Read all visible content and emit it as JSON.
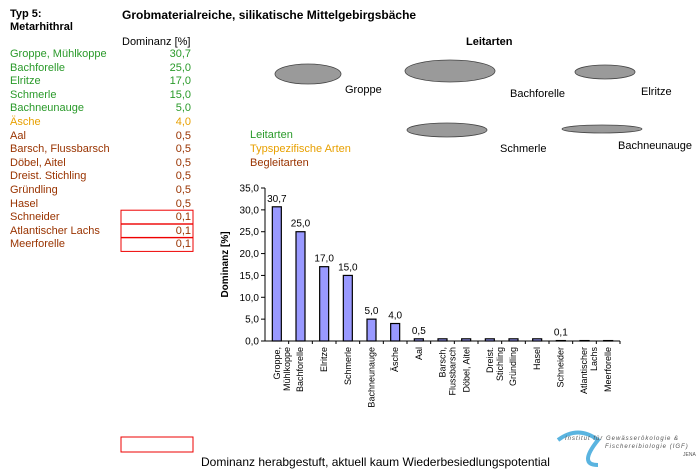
{
  "header": {
    "type_label": "Typ 5:",
    "type_name": "Metarhithral",
    "title": "Grobmaterialreiche, silikatische Mittelgebirgsbäche"
  },
  "table": {
    "header": "Dominanz [%]",
    "rows": [
      {
        "name": "Groppe, Mühlkoppe",
        "value": "30,7",
        "color": "#2a9a2a",
        "boxed": false
      },
      {
        "name": "Bachforelle",
        "value": "25,0",
        "color": "#2a9a2a",
        "boxed": false
      },
      {
        "name": "Elritze",
        "value": "17,0",
        "color": "#2a9a2a",
        "boxed": false
      },
      {
        "name": "Schmerle",
        "value": "15,0",
        "color": "#2a9a2a",
        "boxed": false
      },
      {
        "name": "Bachneunauge",
        "value": "5,0",
        "color": "#2a9a2a",
        "boxed": false
      },
      {
        "name": "Äsche",
        "value": "4,0",
        "color": "#e8a000",
        "boxed": false
      },
      {
        "name": "Aal",
        "value": "0,5",
        "color": "#993300",
        "boxed": false
      },
      {
        "name": "Barsch, Flussbarsch",
        "value": "0,5",
        "color": "#993300",
        "boxed": false
      },
      {
        "name": "Döbel, Aitel",
        "value": "0,5",
        "color": "#993300",
        "boxed": false
      },
      {
        "name": "Dreist. Stichling",
        "value": "0,5",
        "color": "#993300",
        "boxed": false
      },
      {
        "name": "Gründling",
        "value": "0,5",
        "color": "#993300",
        "boxed": false
      },
      {
        "name": "Hasel",
        "value": "0,5",
        "color": "#993300",
        "boxed": false
      },
      {
        "name": "Schneider",
        "value": "0,1",
        "color": "#993300",
        "boxed": true
      },
      {
        "name": "Atlantischer Lachs",
        "value": "0,1",
        "color": "#993300",
        "boxed": true
      },
      {
        "name": "Meerforelle",
        "value": "0,1",
        "color": "#993300",
        "boxed": true
      }
    ]
  },
  "legend": {
    "items": [
      {
        "label": "Leitarten",
        "color": "#2a9a2a"
      },
      {
        "label": "Typspezifische Arten",
        "color": "#e8a000"
      },
      {
        "label": "Begleitarten",
        "color": "#993300"
      }
    ]
  },
  "fish": {
    "title": "Leitarten",
    "labels": [
      "Groppe",
      "Bachforelle",
      "Elritze",
      "Schmerle",
      "Bachneunauge"
    ]
  },
  "chart_data": {
    "type": "bar",
    "y_label": "Dominanz [%]",
    "color": "#9999ff",
    "categories": [
      "Groppe,\nMühlkoppe",
      "Bachforelle",
      "Elritze",
      "Schmerle",
      "Bachneunauge",
      "Äsche",
      "Aal",
      "Barsch,\nFlussbarsch",
      "Döbel, Aitel",
      "Dreist.\nStichling",
      "Gründling",
      "Hasel",
      "Schneider",
      "Atlantischer\nLachs",
      "Meerforelle"
    ],
    "values": [
      30.7,
      25,
      17,
      15,
      5,
      4,
      0.5,
      0.5,
      0.5,
      0.5,
      0.5,
      0.5,
      0.1,
      0.1,
      0.1
    ],
    "value_labels": [
      "30,7",
      "25,0",
      "17,0",
      "15,0",
      "5,0",
      "4,0",
      "0,5",
      null,
      null,
      null,
      null,
      null,
      "0,1",
      null,
      null
    ],
    "ylim": [
      0,
      35
    ],
    "yticks": [
      {
        "value": 0,
        "label": "0,0"
      },
      {
        "value": 5,
        "label": "5,0"
      },
      {
        "value": 10,
        "label": "10,0"
      },
      {
        "value": 15,
        "label": "15,0"
      },
      {
        "value": 20,
        "label": "20,0"
      },
      {
        "value": 25,
        "label": "25,0"
      },
      {
        "value": 30,
        "label": "30,0"
      },
      {
        "value": 35,
        "label": "35,0"
      }
    ]
  },
  "footnote": "Dominanz herabgestuft, aktuell kaum Wiederbesiedlungspotential",
  "logo": {
    "line1": "Institut für Gewässerökologie &",
    "line2": "Fischereibiologie (IGF)",
    "line3": "JENA"
  }
}
